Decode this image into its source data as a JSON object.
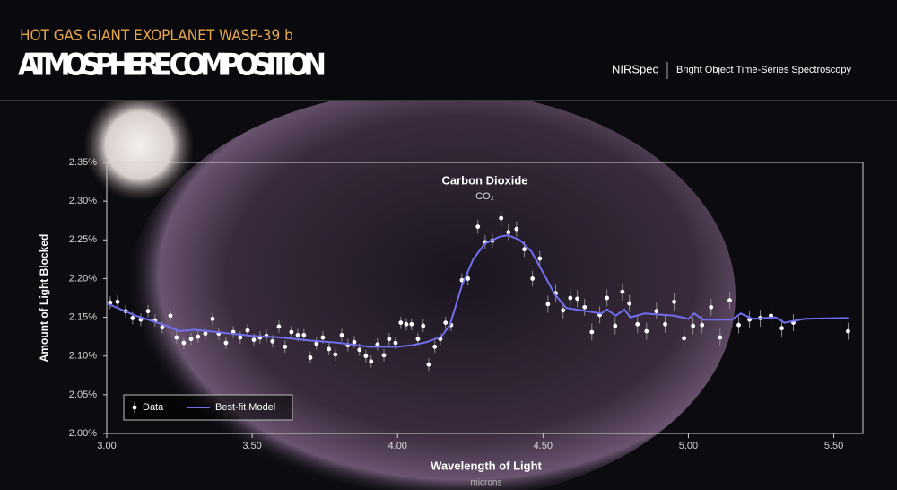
{
  "header": {
    "kicker": "HOT GAS GIANT EXOPLANET WASP-39 b",
    "title": "ATMOSPHERE COMPOSITION",
    "instrument": "NIRSpec",
    "mode": "Bright Object Time-Series Spectroscopy"
  },
  "chart_data": {
    "type": "scatter",
    "annotation": {
      "text": "Carbon Dioxide",
      "formula": "CO₂",
      "x": 4.3
    },
    "xlabel": "Wavelength of Light",
    "xunit": "microns",
    "ylabel": "Amount of Light Blocked",
    "xlim": [
      3.0,
      5.6
    ],
    "ylim": [
      2.0,
      2.35
    ],
    "xticks": [
      {
        "value": 3.0,
        "label": "3.00"
      },
      {
        "value": 3.5,
        "label": "3.50"
      },
      {
        "value": 4.0,
        "label": "4.00"
      },
      {
        "value": 4.5,
        "label": "4.50"
      },
      {
        "value": 5.0,
        "label": "5.00"
      },
      {
        "value": 5.5,
        "label": "5.50"
      }
    ],
    "yticks": [
      {
        "value": 2.0,
        "label": "2.00%"
      },
      {
        "value": 2.05,
        "label": "2.05%"
      },
      {
        "value": 2.1,
        "label": "2.10%"
      },
      {
        "value": 2.15,
        "label": "2.15%"
      },
      {
        "value": 2.2,
        "label": "2.20%"
      },
      {
        "value": 2.25,
        "label": "2.25%"
      },
      {
        "value": 2.3,
        "label": "2.30%"
      },
      {
        "value": 2.35,
        "label": "2.35%"
      }
    ],
    "legend": "lower left",
    "series": [
      {
        "name": "Data",
        "type": "scatter",
        "color": "#ffffff",
        "error_color": "#8a8a8a",
        "x": [
          3.012,
          3.037,
          3.065,
          3.089,
          3.117,
          3.142,
          3.166,
          3.191,
          3.219,
          3.24,
          3.265,
          3.29,
          3.314,
          3.339,
          3.364,
          3.385,
          3.41,
          3.435,
          3.459,
          3.484,
          3.506,
          3.527,
          3.549,
          3.57,
          3.592,
          3.613,
          3.635,
          3.657,
          3.678,
          3.7,
          3.721,
          3.743,
          3.764,
          3.786,
          3.808,
          3.829,
          3.851,
          3.869,
          3.891,
          3.909,
          3.931,
          3.953,
          3.971,
          3.993,
          4.011,
          4.03,
          4.048,
          4.07,
          4.088,
          4.107,
          4.128,
          4.147,
          4.165,
          4.184,
          4.221,
          4.242,
          4.276,
          4.301,
          4.326,
          4.356,
          4.381,
          4.409,
          4.436,
          4.464,
          4.489,
          4.517,
          4.544,
          4.569,
          4.594,
          4.618,
          4.643,
          4.668,
          4.695,
          4.72,
          4.748,
          4.773,
          4.797,
          4.825,
          4.856,
          4.89,
          4.92,
          4.951,
          4.985,
          5.016,
          5.047,
          5.078,
          5.109,
          5.142,
          5.173,
          5.21,
          5.247,
          5.284,
          5.321,
          5.361,
          5.549
        ],
        "values": [
          2.169,
          2.17,
          2.158,
          2.149,
          2.147,
          2.158,
          2.146,
          2.137,
          2.152,
          2.124,
          2.117,
          2.122,
          2.125,
          2.129,
          2.148,
          2.129,
          2.117,
          2.131,
          2.124,
          2.133,
          2.121,
          2.124,
          2.126,
          2.119,
          2.138,
          2.112,
          2.131,
          2.127,
          2.127,
          2.098,
          2.116,
          2.124,
          2.109,
          2.102,
          2.127,
          2.114,
          2.118,
          2.108,
          2.1,
          2.093,
          2.115,
          2.101,
          2.122,
          2.117,
          2.143,
          2.141,
          2.141,
          2.122,
          2.139,
          2.089,
          2.112,
          2.122,
          2.143,
          2.14,
          2.198,
          2.2,
          2.267,
          2.247,
          2.249,
          2.278,
          2.26,
          2.264,
          2.238,
          2.2,
          2.226,
          2.167,
          2.181,
          2.159,
          2.175,
          2.174,
          2.163,
          2.131,
          2.153,
          2.175,
          2.139,
          2.183,
          2.168,
          2.141,
          2.132,
          2.158,
          2.141,
          2.17,
          2.123,
          2.139,
          2.14,
          2.163,
          2.124,
          2.172,
          2.14,
          2.147,
          2.149,
          2.152,
          2.136,
          2.143,
          2.132
        ],
        "errors": [
          0.008,
          0.008,
          0.008,
          0.008,
          0.008,
          0.008,
          0.008,
          0.008,
          0.008,
          0.008,
          0.008,
          0.008,
          0.008,
          0.008,
          0.008,
          0.008,
          0.008,
          0.008,
          0.008,
          0.008,
          0.008,
          0.008,
          0.008,
          0.008,
          0.008,
          0.008,
          0.008,
          0.008,
          0.008,
          0.008,
          0.008,
          0.008,
          0.008,
          0.008,
          0.008,
          0.008,
          0.008,
          0.008,
          0.008,
          0.008,
          0.008,
          0.008,
          0.008,
          0.008,
          0.008,
          0.008,
          0.008,
          0.008,
          0.008,
          0.008,
          0.008,
          0.008,
          0.008,
          0.008,
          0.009,
          0.009,
          0.009,
          0.009,
          0.009,
          0.01,
          0.01,
          0.01,
          0.01,
          0.01,
          0.01,
          0.011,
          0.011,
          0.011,
          0.011,
          0.011,
          0.011,
          0.011,
          0.011,
          0.011,
          0.011,
          0.011,
          0.011,
          0.011,
          0.011,
          0.011,
          0.011,
          0.011,
          0.011,
          0.011,
          0.011,
          0.011,
          0.011,
          0.011,
          0.011,
          0.011,
          0.011,
          0.011,
          0.011,
          0.011,
          0.011
        ]
      },
      {
        "name": "Best-fit Model",
        "type": "line",
        "color": "#6f6ff0",
        "x": [
          3.0,
          3.05,
          3.1,
          3.15,
          3.2,
          3.25,
          3.3,
          3.4,
          3.5,
          3.6,
          3.7,
          3.8,
          3.9,
          4.0,
          4.05,
          4.1,
          4.15,
          4.18,
          4.22,
          4.26,
          4.3,
          4.35,
          4.38,
          4.42,
          4.46,
          4.5,
          4.54,
          4.58,
          4.65,
          4.7,
          4.72,
          4.75,
          4.78,
          4.8,
          4.85,
          4.95,
          5.0,
          5.02,
          5.05,
          5.15,
          5.18,
          5.22,
          5.3,
          5.33,
          5.4,
          5.55
        ],
        "values": [
          2.168,
          2.16,
          2.152,
          2.146,
          2.14,
          2.132,
          2.134,
          2.13,
          2.126,
          2.124,
          2.12,
          2.117,
          2.112,
          2.112,
          2.114,
          2.118,
          2.125,
          2.14,
          2.19,
          2.225,
          2.245,
          2.254,
          2.256,
          2.25,
          2.235,
          2.208,
          2.18,
          2.162,
          2.158,
          2.155,
          2.16,
          2.152,
          2.16,
          2.15,
          2.155,
          2.152,
          2.148,
          2.155,
          2.147,
          2.147,
          2.155,
          2.148,
          2.15,
          2.143,
          2.148,
          2.149
        ]
      }
    ]
  }
}
